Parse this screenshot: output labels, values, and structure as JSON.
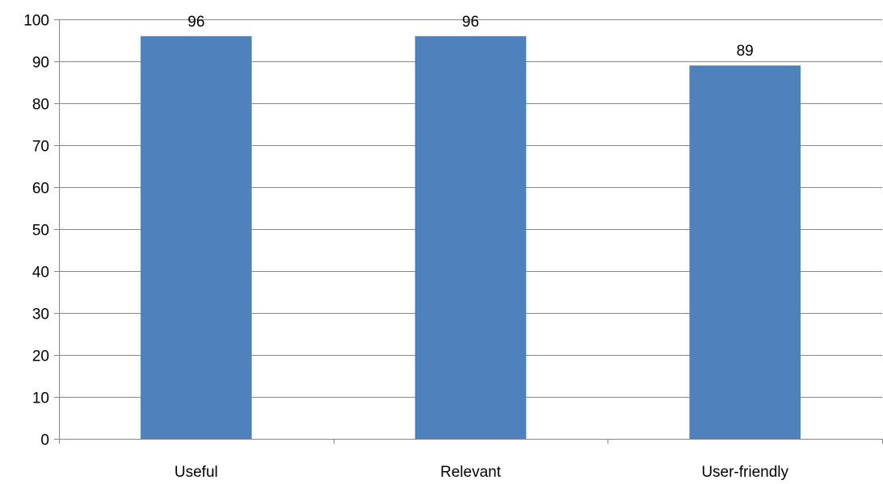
{
  "chart_data": {
    "type": "bar",
    "categories": [
      "Useful",
      "Relevant",
      "User-friendly"
    ],
    "values": [
      96,
      96,
      89
    ],
    "data_labels": [
      "96",
      "96",
      "89"
    ],
    "y_ticks": [
      "0",
      "10",
      "20",
      "30",
      "40",
      "50",
      "60",
      "70",
      "80",
      "90",
      "100"
    ],
    "ylim": [
      0,
      100
    ],
    "grid": true,
    "bar_color": "#4F81BD",
    "gridline_color": "#868686",
    "axis_color": "#868686"
  }
}
